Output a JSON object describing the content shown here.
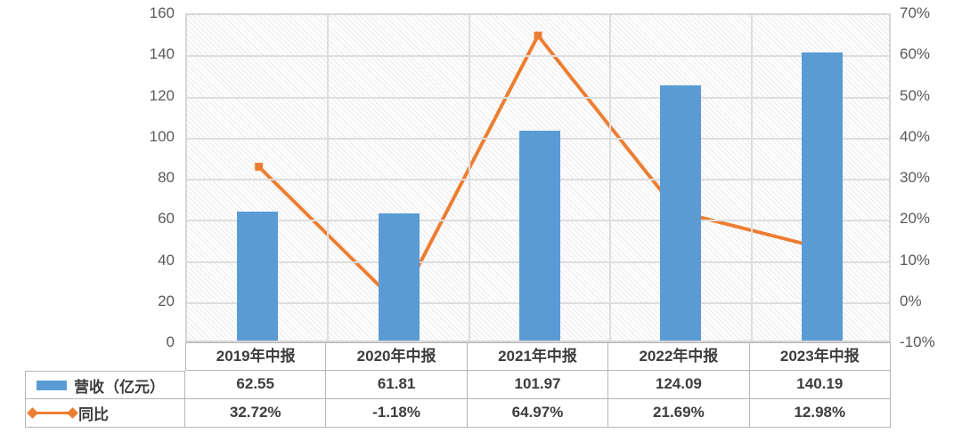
{
  "chart_data": {
    "type": "bar",
    "subtype": "combo-bar-line",
    "categories": [
      "2019年中报",
      "2020年中报",
      "2021年中报",
      "2022年中报",
      "2023年中报"
    ],
    "series": [
      {
        "name": "营收（亿元）",
        "type": "bar",
        "axis": "left",
        "color": "#5B9BD5",
        "values": [
          62.55,
          61.81,
          101.97,
          124.09,
          140.19
        ]
      },
      {
        "name": "同比",
        "type": "line",
        "axis": "right",
        "color": "#ED7D31",
        "values": [
          32.72,
          -1.18,
          64.97,
          21.69,
          12.98
        ]
      }
    ],
    "left_axis": {
      "min": 0,
      "max": 160,
      "step": 20,
      "ticks": [
        "160",
        "140",
        "120",
        "100",
        "80",
        "60",
        "40",
        "20",
        "0"
      ]
    },
    "right_axis": {
      "min": -10,
      "max": 70,
      "step": 10,
      "ticks": [
        "70%",
        "60%",
        "50%",
        "40%",
        "30%",
        "20%",
        "10%",
        "0%",
        "-10%"
      ]
    },
    "grid": true,
    "plot_background": "diagonal-hatch",
    "legend_position": "table-left",
    "table": {
      "rows": [
        {
          "label": "营收（亿元）",
          "values": [
            "62.55",
            "61.81",
            "101.97",
            "124.09",
            "140.19"
          ]
        },
        {
          "label": "同比",
          "values": [
            "32.72%",
            "-1.18%",
            "64.97%",
            "21.69%",
            "12.98%"
          ]
        }
      ]
    }
  },
  "colors": {
    "bar": "#5B9BD5",
    "line": "#ED7D31",
    "gridline": "#dddddd",
    "table_border": "#b5b5b5",
    "tick_text": "#595959",
    "table_text": "#3d3d3d"
  }
}
